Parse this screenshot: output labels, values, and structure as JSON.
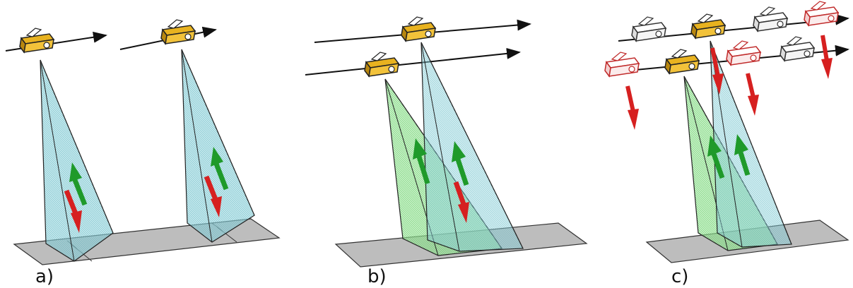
{
  "figure": {
    "panels": [
      {
        "id": "a",
        "label": "a)",
        "satellites_active": 2,
        "satellites_inactive": 0
      },
      {
        "id": "b",
        "label": "b)",
        "satellites_active": 2,
        "satellites_inactive": 0
      },
      {
        "id": "c",
        "label": "c)",
        "satellites_active": 2,
        "satellites_inactive_white": 3,
        "satellites_inactive_red": 3
      }
    ]
  },
  "colors": {
    "satellite_active": "#e8b21f",
    "satellite_outline": "#222222",
    "beam_cyan": "#8fd3dc",
    "beam_green": "#9ae69a",
    "arrow_red": "#d62020",
    "arrow_green": "#1f9a2a",
    "ground": "#bdbdbd"
  }
}
